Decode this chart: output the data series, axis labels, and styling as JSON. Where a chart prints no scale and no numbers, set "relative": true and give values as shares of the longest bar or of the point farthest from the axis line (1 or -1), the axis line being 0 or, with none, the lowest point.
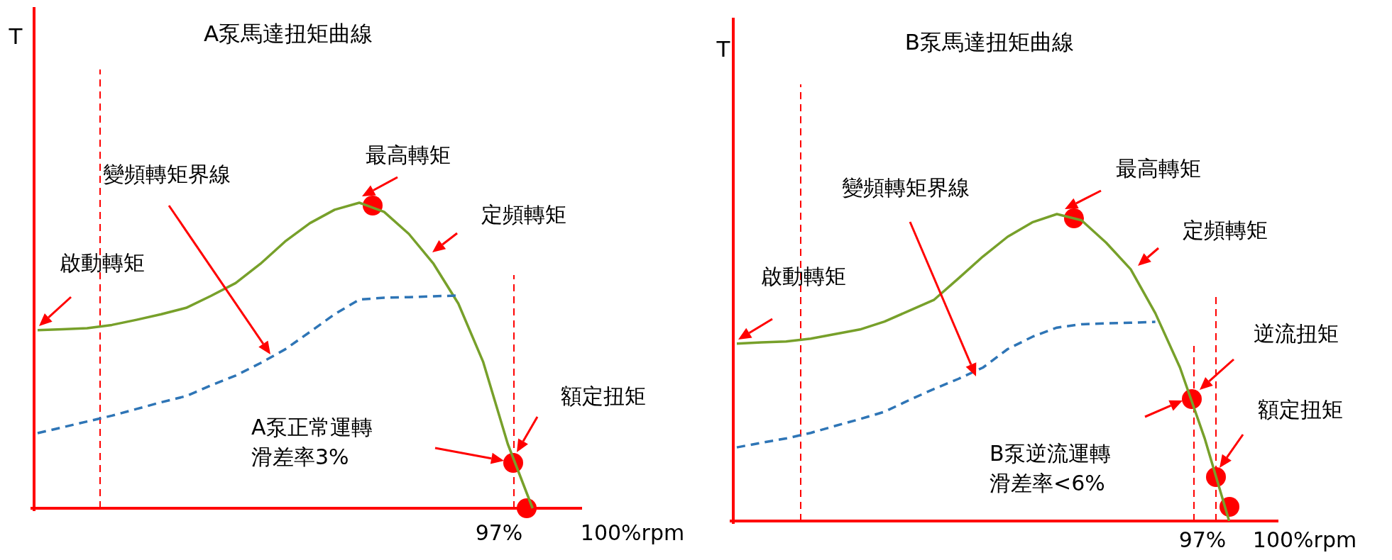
{
  "chart_data": [
    {
      "type": "line",
      "title": "A泵馬達扭矩曲線",
      "ylabel": "T",
      "relative": true,
      "categories": [
        null,
        null,
        null,
        null,
        null,
        null,
        null,
        null,
        null,
        null,
        null,
        null,
        null,
        null,
        null,
        null,
        null,
        null,
        null,
        null,
        null,
        null,
        null
      ],
      "series": [
        {
          "color": "#77a02a",
          "line_style": "solid",
          "values": [
            0.583,
            0.586,
            0.589,
            0.6,
            0.617,
            0.635,
            0.656,
            0.695,
            0.737,
            0.8,
            0.873,
            0.933,
            0.977,
            1.0,
            0.97,
            0.898,
            0.8,
            0.67,
            0.48,
            0.21,
            0,
            null,
            null
          ]
        },
        {
          "color": "#2e75b6",
          "line_style": "dashed",
          "values": [
            0.246,
            0.265,
            0.284,
            0.303,
            0.325,
            0.347,
            0.367,
            0.402,
            0.434,
            0.475,
            0.52,
            0.577,
            0.635,
            0.683,
            0.689,
            0.691,
            0.694,
            0.696,
            null,
            null,
            null,
            null,
            null
          ]
        }
      ],
      "annotations": [
        "變頻轉矩界線",
        "最高轉矩",
        "定頻轉矩",
        "啟動轉矩",
        "額定扭矩",
        "A泵正常運轉",
        "滑差率3%",
        "97%",
        "100%rpm"
      ]
    },
    {
      "type": "line",
      "title": "B泵馬達扭矩曲線",
      "ylabel": "T",
      "relative": true,
      "categories": [
        null,
        null,
        null,
        null,
        null,
        null,
        null,
        null,
        null,
        null,
        null,
        null,
        null,
        null,
        null,
        null,
        null,
        null,
        null,
        null,
        null,
        null,
        null
      ],
      "series": [
        {
          "color": "#77a02a",
          "line_style": "solid",
          "values": [
            0.578,
            0.582,
            0.585,
            0.594,
            0.609,
            0.624,
            0.65,
            0.685,
            0.72,
            0.79,
            0.862,
            0.926,
            0.973,
            1.0,
            0.98,
            0.907,
            0.82,
            0.677,
            0.5,
            0.27,
            0,
            null,
            null
          ]
        },
        {
          "color": "#2e75b6",
          "line_style": "dashed",
          "values": [
            0.24,
            0.255,
            0.269,
            0.287,
            0.31,
            0.332,
            0.356,
            0.394,
            0.43,
            0.463,
            0.5,
            0.56,
            0.6,
            0.63,
            0.641,
            0.644,
            0.646,
            0.649,
            null,
            null,
            null,
            null,
            null
          ]
        }
      ],
      "annotations": [
        "變頻轉矩界線",
        "最高轉矩",
        "定頻轉矩",
        "啟動轉矩",
        "逆流扭矩",
        "額定扭矩",
        "B泵逆流運轉",
        "滑差率<6%",
        "97%",
        "100%rpm"
      ]
    }
  ]
}
